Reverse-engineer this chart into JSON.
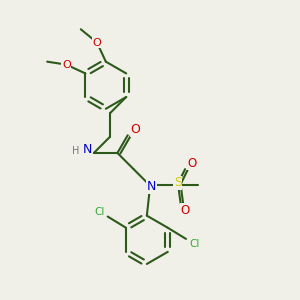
{
  "background_color": "#f0f0e8",
  "bond_color": "#2d5a1b",
  "bond_width": 1.5,
  "atom_colors": {
    "C": "#2d5a1b",
    "N": "#0000cc",
    "O": "#cc0000",
    "S": "#cccc00",
    "Cl": "#33aa33",
    "H": "#777777"
  },
  "font_size": 8.0
}
